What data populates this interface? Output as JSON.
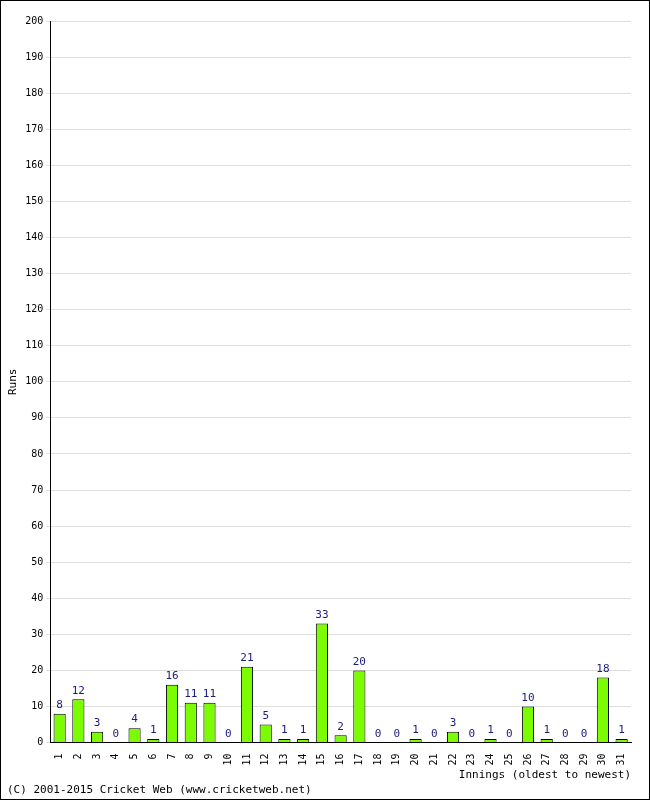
{
  "chart_data": {
    "type": "bar",
    "x_label": "Innings (oldest to newest)",
    "y_label": "Runs",
    "annotations": [
      "(C) 2001-2015 Cricket Web (www.cricketweb.net)"
    ],
    "categories": [
      "1",
      "2",
      "3",
      "4",
      "5",
      "6",
      "7",
      "8",
      "9",
      "10",
      "11",
      "12",
      "13",
      "14",
      "15",
      "16",
      "17",
      "18",
      "19",
      "20",
      "21",
      "22",
      "23",
      "24",
      "25",
      "26",
      "27",
      "28",
      "29",
      "30",
      "31"
    ],
    "values": [
      8,
      12,
      3,
      0,
      4,
      1,
      16,
      11,
      11,
      0,
      21,
      5,
      1,
      1,
      33,
      2,
      20,
      0,
      0,
      1,
      0,
      3,
      0,
      1,
      0,
      10,
      1,
      0,
      0,
      18,
      1
    ],
    "color": "#7cfc00",
    "ylim": [
      0,
      200
    ],
    "yticks": [
      0,
      10,
      20,
      30,
      40,
      50,
      60,
      70,
      80,
      90,
      100,
      110,
      120,
      130,
      140,
      150,
      160,
      170,
      180,
      190,
      200
    ],
    "grid": true,
    "data_labels": true
  }
}
